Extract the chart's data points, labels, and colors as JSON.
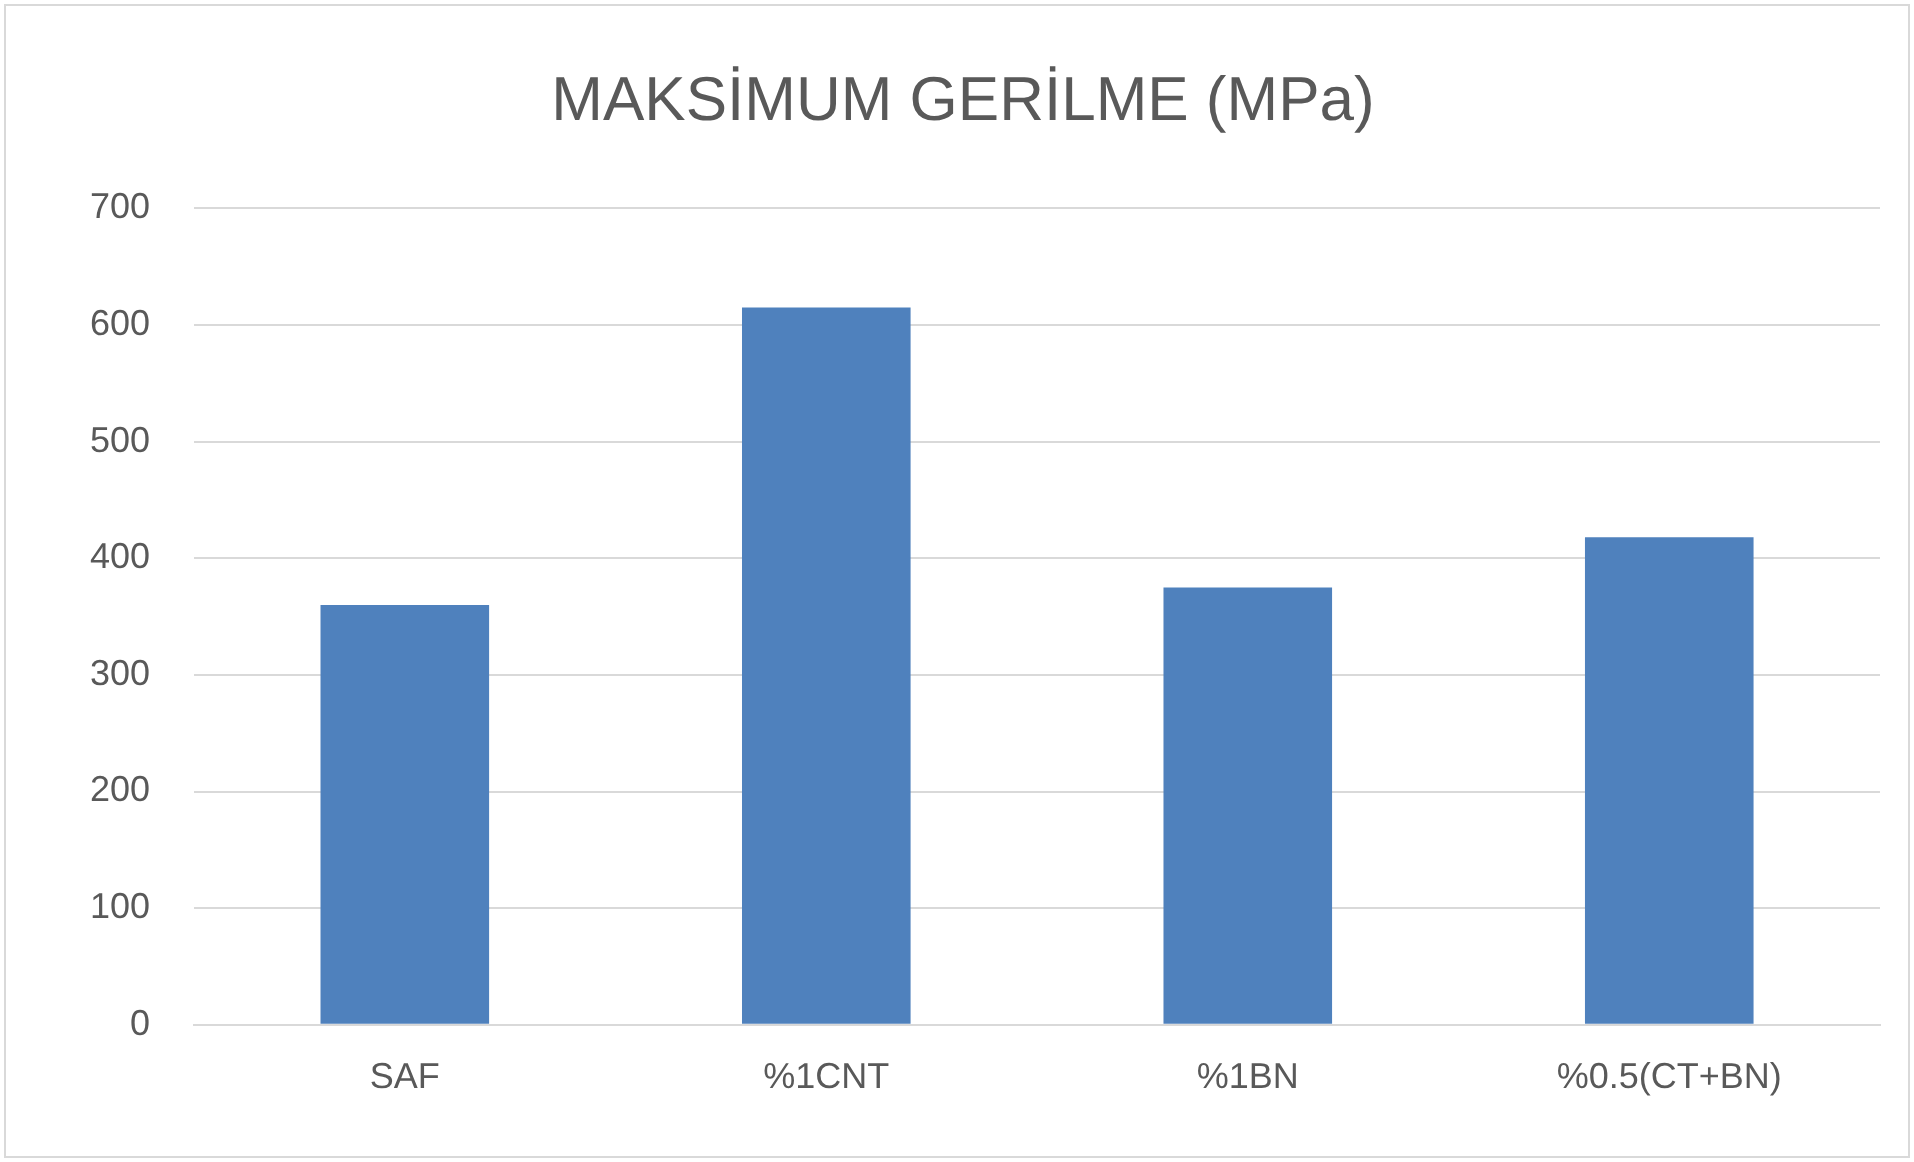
{
  "chart_data": {
    "type": "bar",
    "title": "MAKSİMUM GERİLME (MPa)",
    "categories": [
      "SAF",
      "%1CNT",
      "%1BN",
      "%0.5(CT+BN)"
    ],
    "values": [
      360,
      615,
      375,
      418
    ],
    "color": "#4f81bd",
    "ylim": [
      0,
      700
    ],
    "yticks": [
      0,
      100,
      200,
      300,
      400,
      500,
      600,
      700
    ],
    "grid": "y"
  }
}
